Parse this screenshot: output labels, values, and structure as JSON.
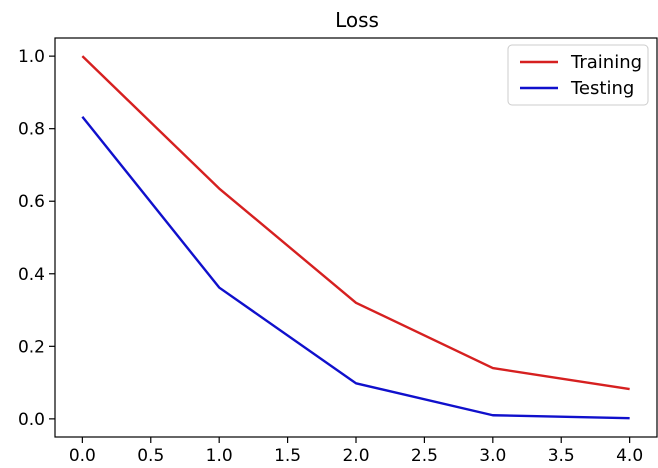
{
  "chart_data": {
    "type": "line",
    "title": "Loss",
    "xlabel": "",
    "ylabel": "",
    "x": [
      0,
      1,
      2,
      3,
      4
    ],
    "series": [
      {
        "name": "Training",
        "color": "#d62020",
        "values": [
          1.0,
          0.635,
          0.32,
          0.14,
          0.082
        ]
      },
      {
        "name": "Testing",
        "color": "#1010cc",
        "values": [
          0.833,
          0.362,
          0.098,
          0.01,
          0.002
        ]
      }
    ],
    "xlim": [
      -0.2,
      4.2
    ],
    "ylim": [
      -0.05,
      1.05
    ],
    "xticks": [
      0.0,
      0.5,
      1.0,
      1.5,
      2.0,
      2.5,
      3.0,
      3.5,
      4.0
    ],
    "xtick_labels": [
      "0.0",
      "0.5",
      "1.0",
      "1.5",
      "2.0",
      "2.5",
      "3.0",
      "3.5",
      "4.0"
    ],
    "yticks": [
      0.0,
      0.2,
      0.4,
      0.6,
      0.8,
      1.0
    ],
    "ytick_labels": [
      "0.0",
      "0.2",
      "0.4",
      "0.6",
      "0.8",
      "1.0"
    ],
    "grid": false,
    "legend_position": "top-right"
  }
}
